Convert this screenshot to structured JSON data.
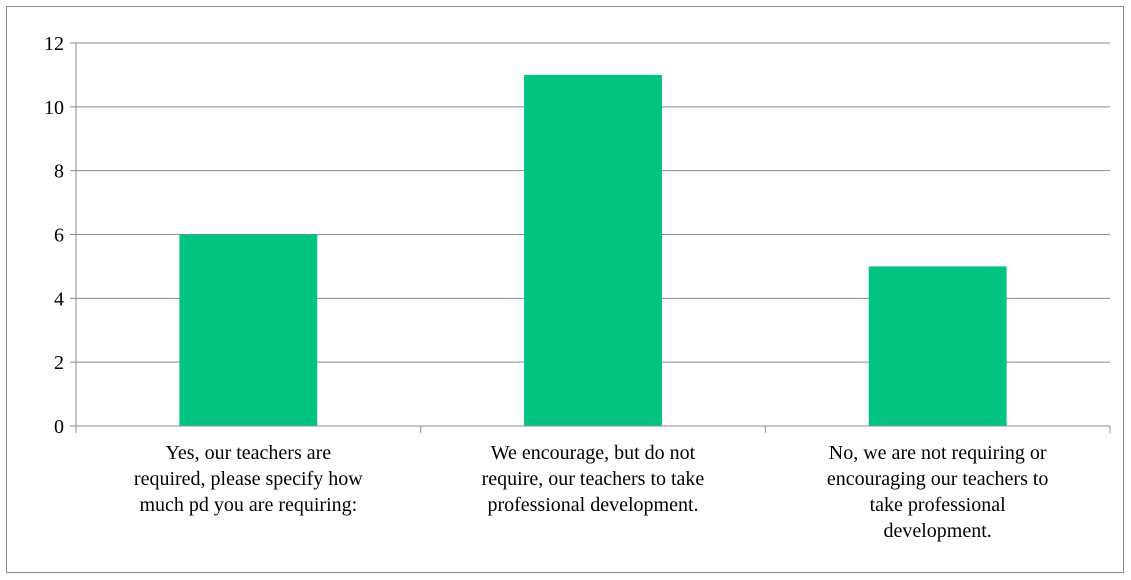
{
  "chart_data": {
    "type": "bar",
    "categories": [
      "Yes, our teachers are required, please specify how much pd you are requiring:",
      "We encourage, but do not require, our teachers to take professional development.",
      "No, we are not requiring or encouraging our teachers to take professional development."
    ],
    "category_lines": [
      [
        "Yes, our teachers are",
        "required, please specify how",
        "much pd you are requiring:"
      ],
      [
        "We encourage, but do not",
        "require, our teachers to take",
        "professional development."
      ],
      [
        "No, we are not requiring or",
        "encouraging our teachers to",
        "take professional",
        "development."
      ]
    ],
    "values": [
      6,
      11,
      5
    ],
    "yticks": [
      "0",
      "2",
      "4",
      "6",
      "8",
      "10",
      "12"
    ],
    "ylim": [
      0,
      12
    ],
    "title": "",
    "xlabel": "",
    "ylabel": "",
    "grid": true,
    "legend": "none",
    "colors": {
      "bar": "#00c47f",
      "grid": "#8c8c8c",
      "axis": "#8c8c8c"
    }
  }
}
